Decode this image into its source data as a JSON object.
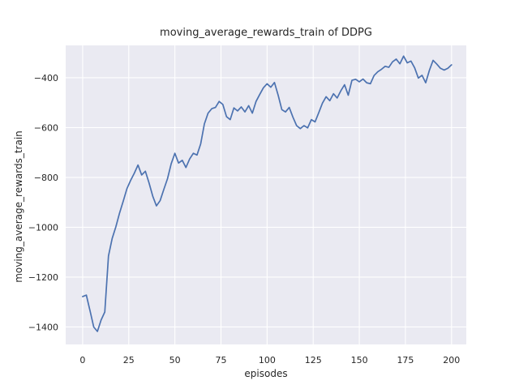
{
  "colors": {
    "figure_background": "#ffffff",
    "axes_background": "#eaeaf2",
    "grid": "#ffffff",
    "text": "#262626",
    "line": "#4c72b0"
  },
  "chart_data": {
    "type": "line",
    "title": "moving_average_rewards_train of DDPG",
    "xlabel": "episodes",
    "ylabel": "moving_average_rewards_train",
    "grid": true,
    "legend_position": "none",
    "xlim": [
      -9.2,
      208
    ],
    "ylim": [
      -1470,
      -270
    ],
    "x_ticks": [
      0,
      25,
      50,
      75,
      100,
      125,
      150,
      175,
      200
    ],
    "x_tick_labels": [
      "0",
      "25",
      "50",
      "75",
      "100",
      "125",
      "150",
      "175",
      "200"
    ],
    "y_ticks": [
      -400,
      -600,
      -800,
      -1000,
      -1200,
      -1400
    ],
    "y_tick_labels": [
      "−400",
      "−600",
      "−800",
      "−1000",
      "−1200",
      "−1400"
    ],
    "series": [
      {
        "name": "moving_average_rewards_train",
        "color": "#4c72b0",
        "x": [
          0,
          2,
          4,
          6,
          8,
          10,
          12,
          14,
          16,
          18,
          20,
          22,
          24,
          26,
          28,
          30,
          32,
          34,
          36,
          38,
          40,
          42,
          44,
          46,
          48,
          50,
          52,
          54,
          56,
          58,
          60,
          62,
          64,
          66,
          68,
          70,
          72,
          74,
          76,
          78,
          80,
          82,
          84,
          86,
          88,
          90,
          92,
          94,
          96,
          98,
          100,
          102,
          104,
          106,
          108,
          110,
          112,
          114,
          116,
          118,
          120,
          122,
          124,
          126,
          128,
          130,
          132,
          134,
          136,
          138,
          140,
          142,
          144,
          146,
          148,
          150,
          152,
          154,
          156,
          158,
          160,
          162,
          164,
          166,
          168,
          170,
          172,
          174,
          176,
          178,
          180,
          182,
          184,
          186,
          188,
          190,
          192,
          194,
          196,
          198,
          200
        ],
        "y": [
          -1278,
          -1272,
          -1335,
          -1400,
          -1418,
          -1372,
          -1340,
          -1115,
          -1045,
          -998,
          -943,
          -895,
          -845,
          -812,
          -783,
          -750,
          -790,
          -775,
          -822,
          -875,
          -914,
          -893,
          -848,
          -805,
          -745,
          -703,
          -742,
          -731,
          -760,
          -726,
          -703,
          -710,
          -665,
          -585,
          -542,
          -524,
          -519,
          -495,
          -507,
          -556,
          -568,
          -521,
          -533,
          -517,
          -537,
          -512,
          -542,
          -495,
          -467,
          -440,
          -424,
          -438,
          -419,
          -470,
          -528,
          -537,
          -519,
          -558,
          -592,
          -604,
          -592,
          -601,
          -568,
          -577,
          -540,
          -502,
          -476,
          -492,
          -464,
          -481,
          -452,
          -428,
          -470,
          -410,
          -406,
          -416,
          -405,
          -420,
          -424,
          -391,
          -376,
          -366,
          -354,
          -358,
          -336,
          -325,
          -344,
          -313,
          -340,
          -333,
          -360,
          -401,
          -390,
          -420,
          -370,
          -330,
          -345,
          -362,
          -369,
          -362,
          -348
        ]
      }
    ]
  }
}
